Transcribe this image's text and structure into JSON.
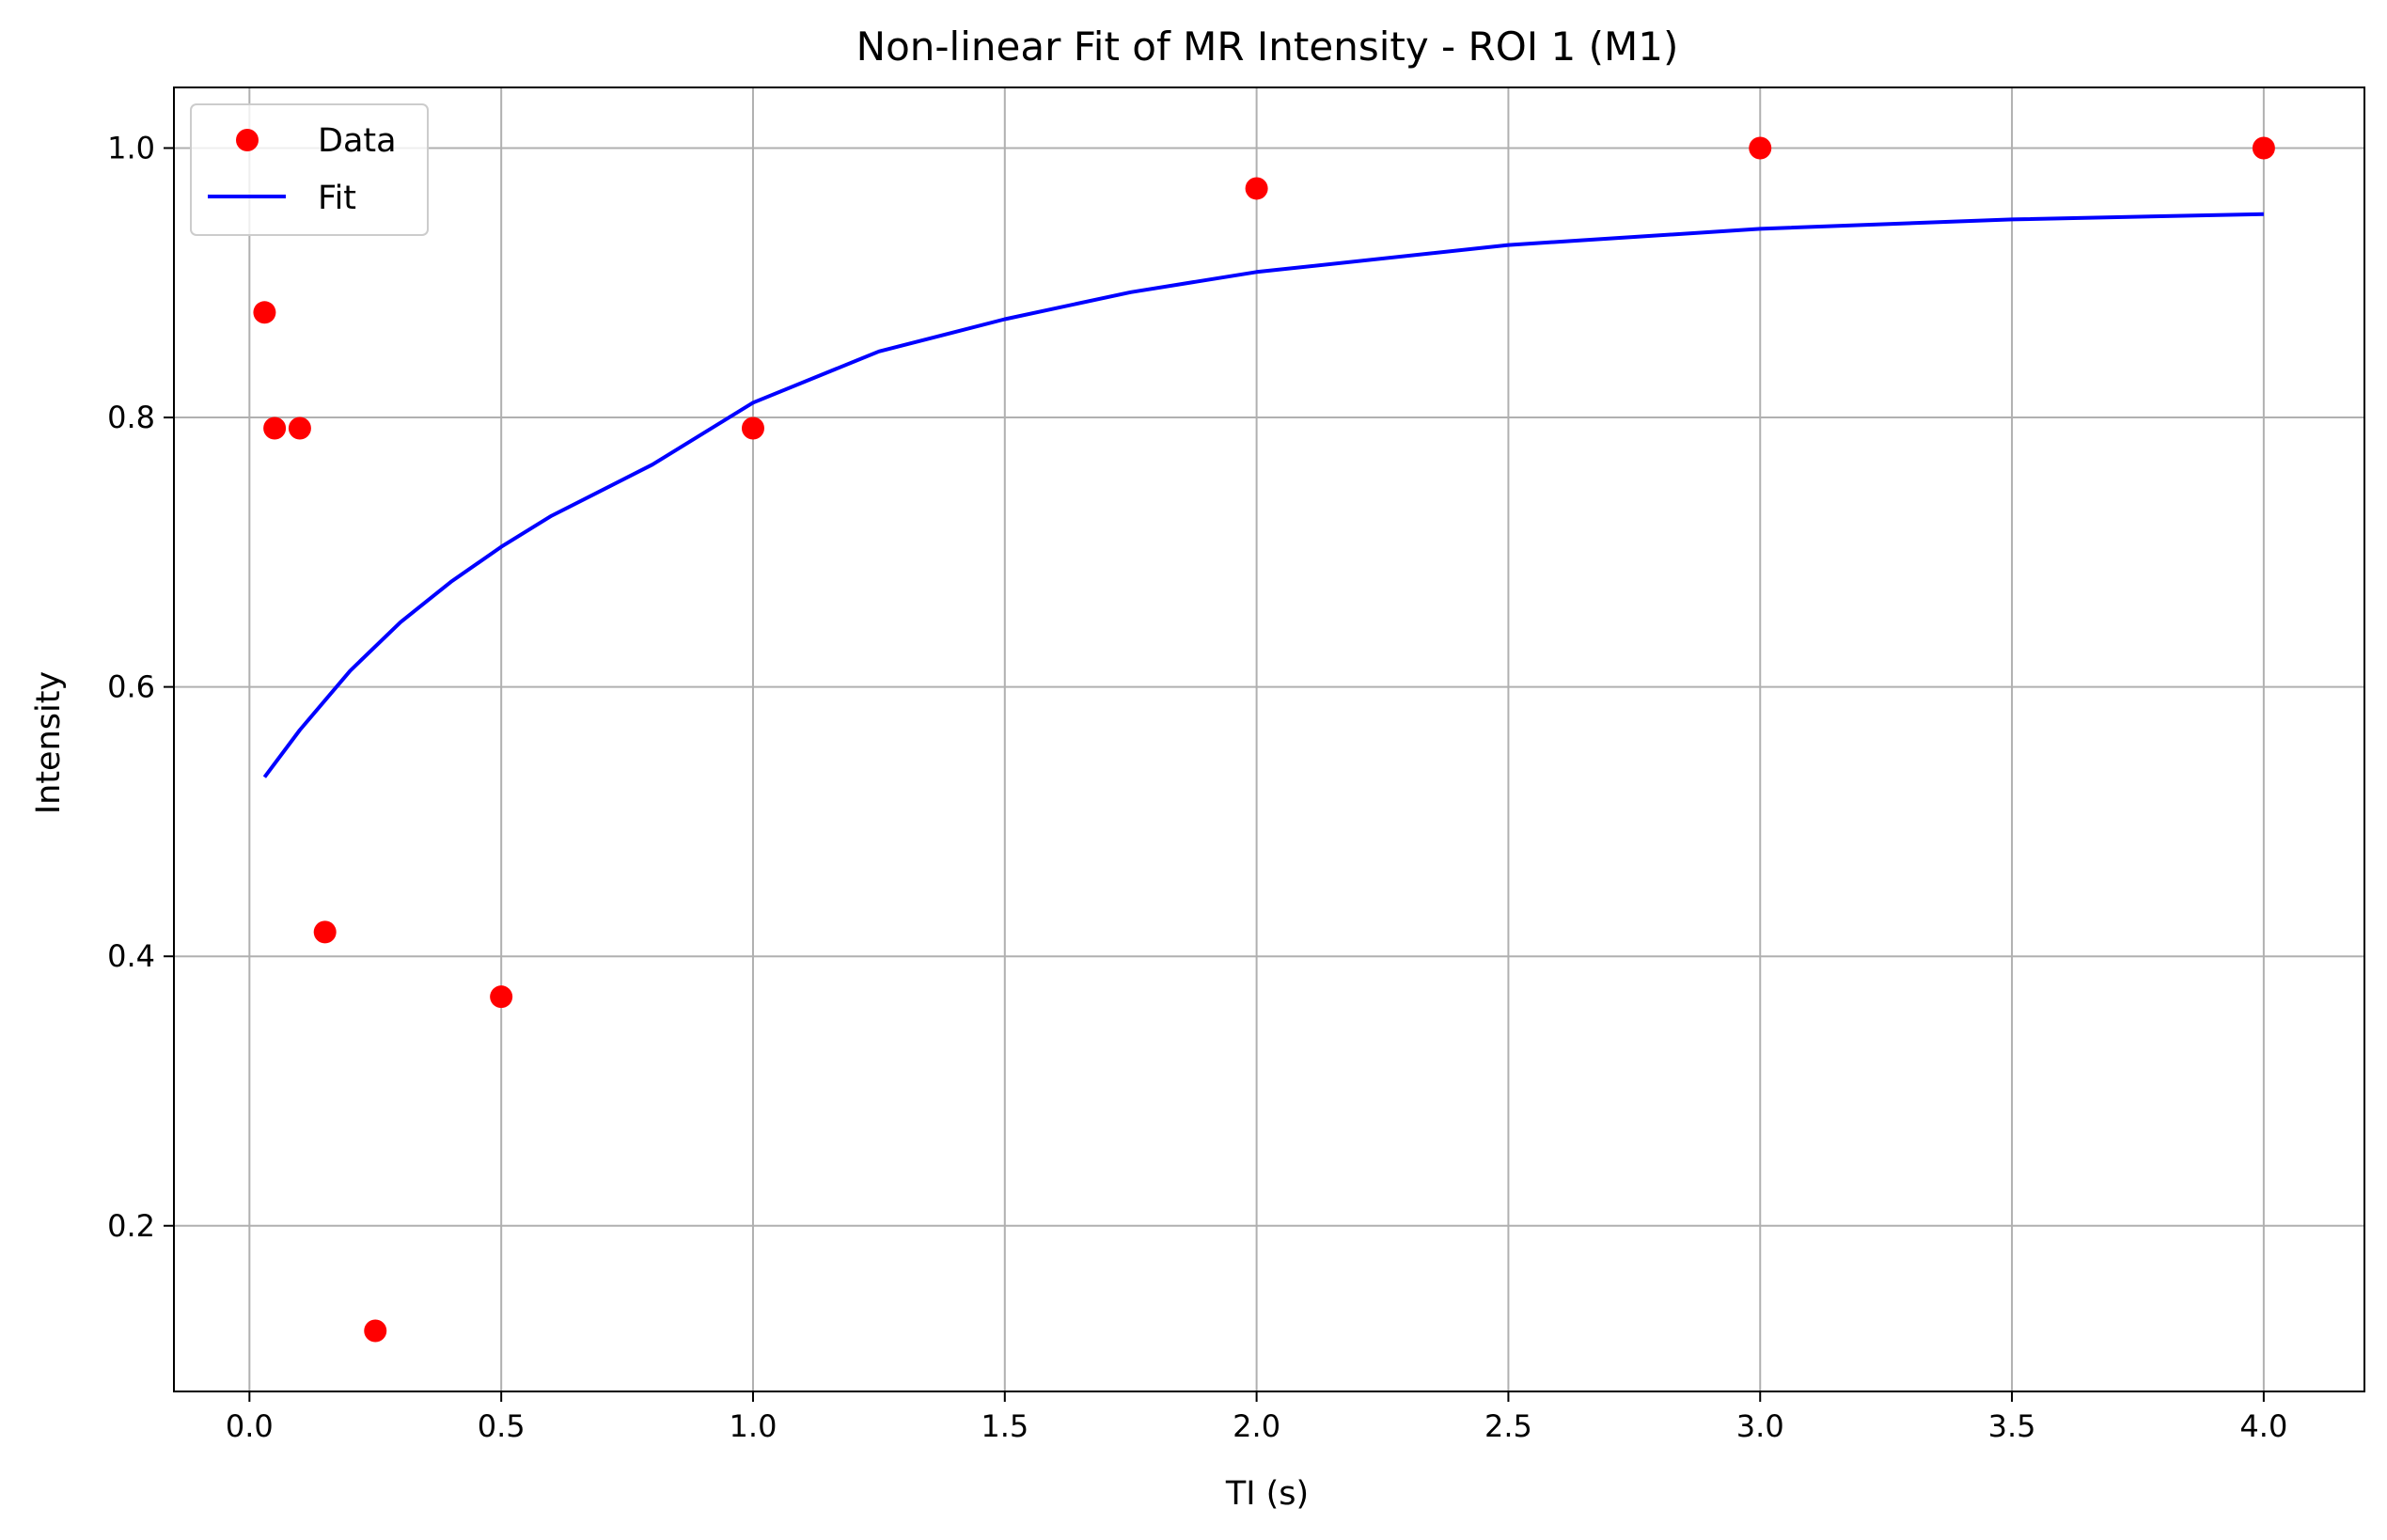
{
  "chart_data": {
    "type": "scatter",
    "title": "Non-linear Fit of MR Intensity - ROI 1 (M1)",
    "xlabel": "TI (s)",
    "ylabel": "Intensity",
    "xlim": [
      -0.15,
      4.2
    ],
    "ylim": [
      0.077,
      1.045
    ],
    "xticks": [
      0.0,
      0.5,
      1.0,
      1.5,
      2.0,
      2.5,
      3.0,
      3.5,
      4.0
    ],
    "xtick_labels": [
      "0.0",
      "0.5",
      "1.0",
      "1.5",
      "2.0",
      "2.5",
      "3.0",
      "3.5",
      "4.0"
    ],
    "yticks": [
      0.2,
      0.4,
      0.6,
      0.8,
      1.0
    ],
    "ytick_labels": [
      "0.2",
      "0.4",
      "0.6",
      "0.8",
      "1.0"
    ],
    "grid": true,
    "legend_position": "top-left",
    "series": [
      {
        "name": "Data",
        "kind": "scatter",
        "color": "#ff0000",
        "x": [
          0.03,
          0.05,
          0.1,
          0.15,
          0.25,
          0.5,
          1.0,
          2.0,
          3.0,
          4.0
        ],
        "y": [
          0.878,
          0.792,
          0.792,
          0.418,
          0.122,
          0.37,
          0.792,
          0.97,
          1.0,
          1.0
        ]
      },
      {
        "name": "Fit",
        "kind": "line",
        "color": "#0000ff",
        "x": [
          0.03,
          0.1,
          0.2,
          0.3,
          0.4,
          0.5,
          0.6,
          0.8,
          1.0,
          1.25,
          1.5,
          1.75,
          2.0,
          2.5,
          3.0,
          3.5,
          4.0
        ],
        "y": [
          0.533,
          0.568,
          0.612,
          0.648,
          0.678,
          0.704,
          0.727,
          0.765,
          0.811,
          0.849,
          0.873,
          0.893,
          0.908,
          0.928,
          0.94,
          0.947,
          0.951
        ]
      }
    ]
  }
}
